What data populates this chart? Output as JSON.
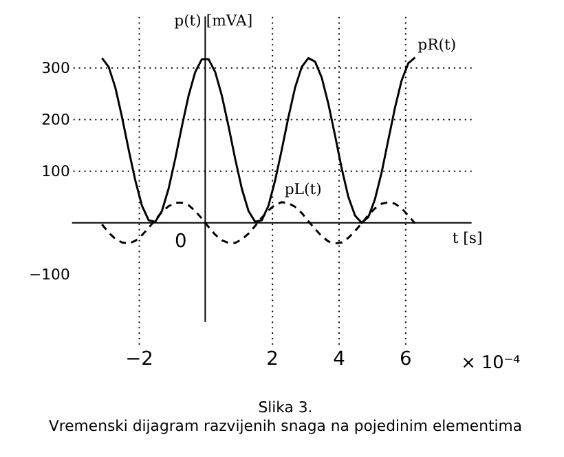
{
  "chart_data": {
    "type": "line",
    "title": "Slika 3.",
    "subtitle": "Vremenski dijagram razvijenih snaga na pojedinim elementima",
    "xlabel": "t [s]",
    "ylabel": "p(t)   [mVA]",
    "annotations": [
      "0",
      "× 10⁻⁴"
    ],
    "x": [
      -3.1,
      -2.9,
      -2.7,
      -2.5,
      -2.3,
      -2.1,
      -1.9,
      -1.7,
      -1.5,
      -1.3,
      -1.1,
      -0.9,
      -0.7,
      -0.5,
      -0.3,
      -0.1,
      0.1,
      0.3,
      0.5,
      0.7,
      0.9,
      1.1,
      1.3,
      1.5,
      1.7,
      1.9,
      2.1,
      2.3,
      2.5,
      2.7,
      2.9,
      3.1,
      3.3,
      3.5,
      3.7,
      3.9,
      4.1,
      4.3,
      4.5,
      4.7,
      4.9,
      5.1,
      5.3,
      5.5,
      5.7,
      5.9,
      6.1,
      6.3
    ],
    "series": [
      {
        "name": "pR(t)",
        "color": "#000000",
        "line_style": "solid",
        "values": [
          319,
          302,
          262,
          205,
          142,
          82,
          33,
          5,
          2,
          23,
          66,
          124,
          187,
          246,
          292,
          317,
          317,
          292,
          246,
          187,
          124,
          66,
          23,
          2,
          5,
          33,
          82,
          142,
          205,
          262,
          302,
          319,
          312,
          281,
          230,
          169,
          105,
          50,
          14,
          0,
          11,
          46,
          98,
          161,
          223,
          276,
          309,
          320
        ]
      },
      {
        "name": "pL(t)",
        "color": "#000000",
        "line_style": "dashed",
        "values": [
          -3,
          -19,
          -31,
          -38,
          -40,
          -35,
          -24,
          -10,
          6,
          21,
          32,
          39,
          39,
          34,
          23,
          8,
          -8,
          -23,
          -34,
          -39,
          -39,
          -32,
          -21,
          -6,
          10,
          24,
          35,
          40,
          38,
          31,
          19,
          3,
          -12,
          -26,
          -36,
          -40,
          -38,
          -29,
          -16,
          -1,
          15,
          28,
          37,
          40,
          37,
          28,
          14,
          -1
        ]
      }
    ],
    "xlim": [
      -4,
      8
    ],
    "ylim": [
      -240,
      400
    ],
    "xticks": [
      -2,
      2,
      4,
      6
    ],
    "yticks": [
      -100,
      100,
      200,
      300
    ],
    "grid": true,
    "marker": "none"
  }
}
